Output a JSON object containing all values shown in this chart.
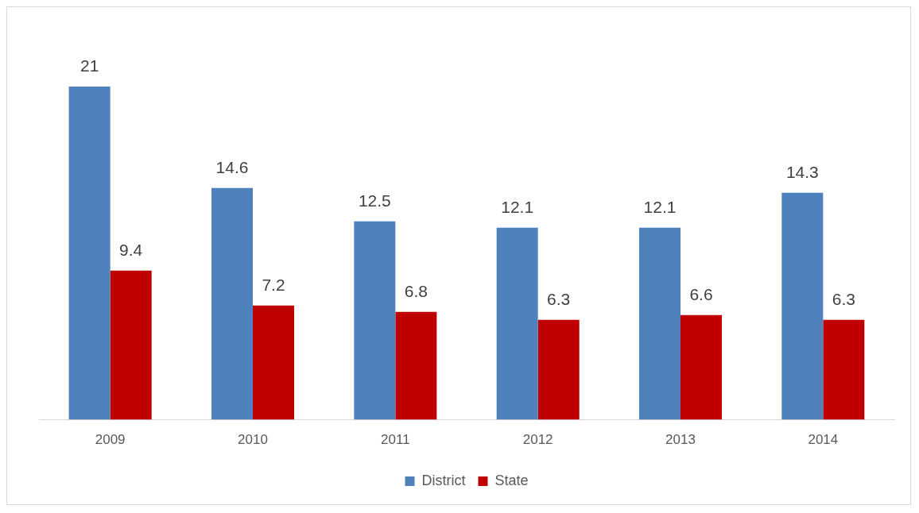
{
  "chart_data": {
    "type": "bar",
    "categories": [
      "2009",
      "2010",
      "2011",
      "2012",
      "2013",
      "2014"
    ],
    "series": [
      {
        "name": "District",
        "color": "#4f81bd",
        "values": [
          21,
          14.6,
          12.5,
          12.1,
          12.1,
          14.3
        ]
      },
      {
        "name": "State",
        "color": "#c00000",
        "values": [
          9.4,
          7.2,
          6.8,
          6.3,
          6.6,
          6.3
        ]
      }
    ],
    "data_labels": true,
    "legend": "bottom",
    "grid": false
  }
}
